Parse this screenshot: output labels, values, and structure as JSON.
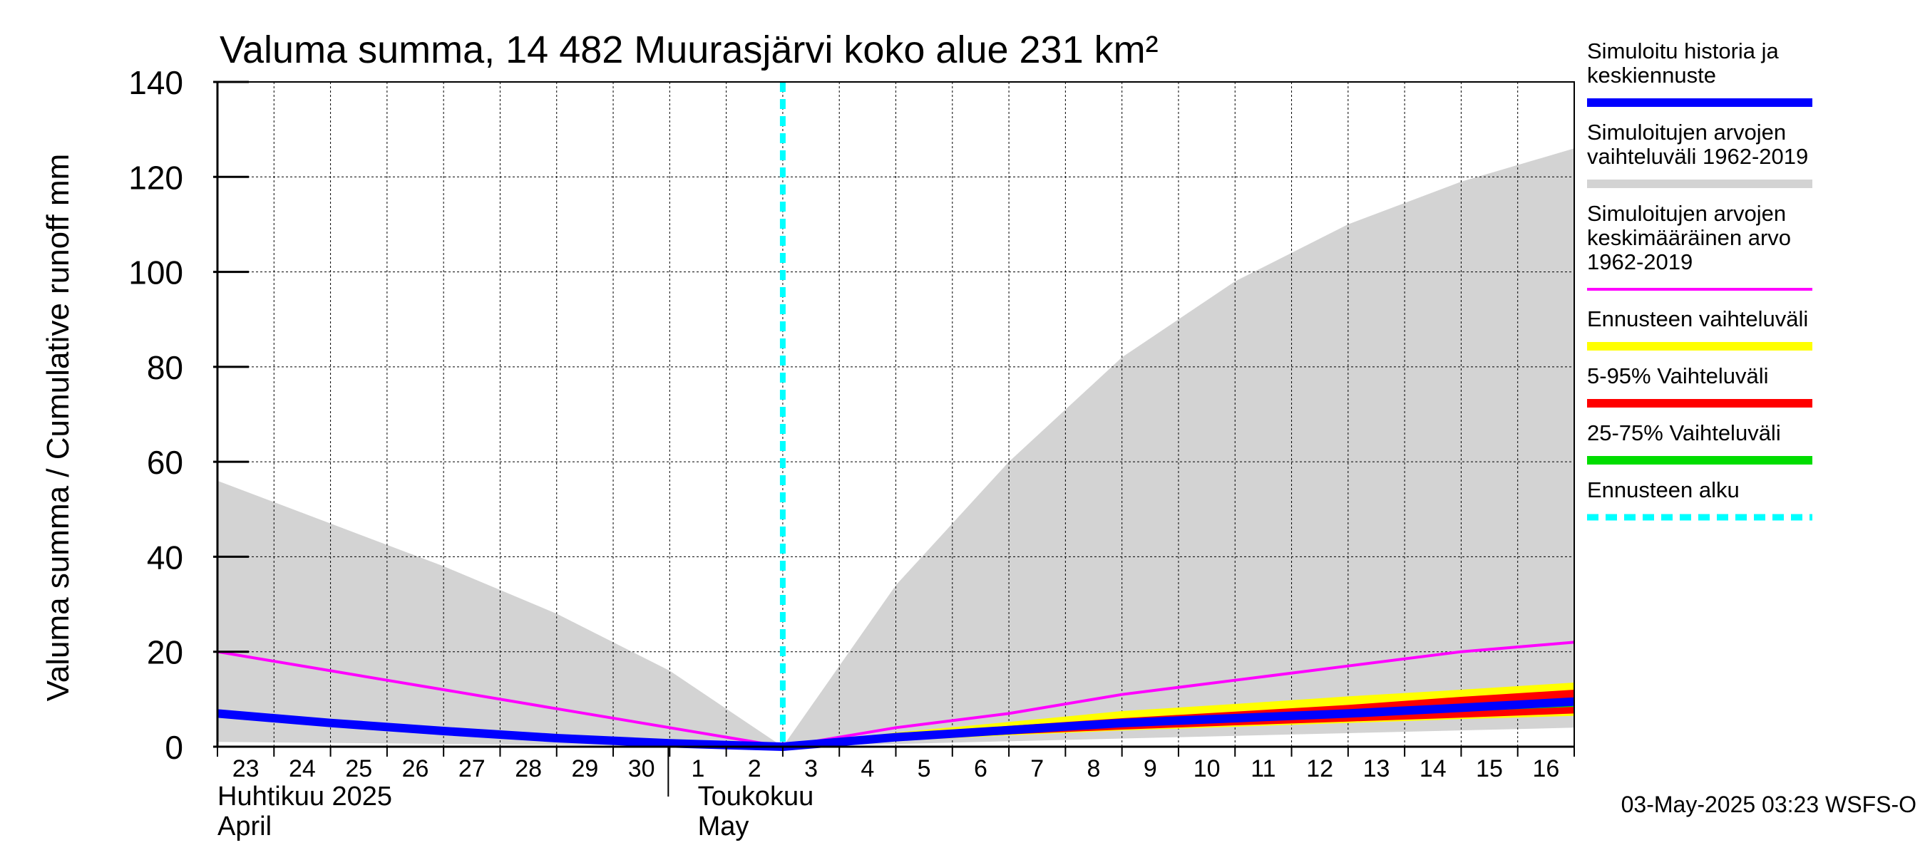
{
  "chart_data": {
    "type": "area",
    "title": "Valuma summa, 14 482 Muurasjärvi koko alue 231 km²",
    "ylabel": "Valuma summa / Cumulative runoff    mm",
    "ylim": [
      0,
      140
    ],
    "yticks": [
      0,
      20,
      40,
      60,
      80,
      100,
      120,
      140
    ],
    "x_start": "2025-04-23",
    "x_end": "2025-05-17",
    "forecast_start": "2025-05-03",
    "grid": true,
    "legend_position": "right",
    "x_tick_labels": [
      "23",
      "24",
      "25",
      "26",
      "27",
      "28",
      "29",
      "30",
      "1",
      "2",
      "3",
      "4",
      "5",
      "6",
      "7",
      "8",
      "9",
      "10",
      "11",
      "12",
      "13",
      "14",
      "15",
      "16"
    ],
    "month_labels": [
      {
        "fi": "Huhtikuu  2025",
        "en": "April"
      },
      {
        "fi": "Toukokuu",
        "en": "May"
      }
    ],
    "footer": "03-May-2025 03:23 WSFS-O",
    "colors": {
      "hist_range": "#d3d3d3",
      "mean": "#ff00ff",
      "simulated": "#0000ff",
      "forecast_range": "#ffff00",
      "p5_95": "#ff0000",
      "p25_75": "#00dd00",
      "forecast_start": "#00ffff"
    },
    "legend": [
      {
        "label": [
          "Simuloitu historia ja",
          "keskiennuste"
        ],
        "color": "#0000ff",
        "style": "solid"
      },
      {
        "label": [
          "Simuloitujen arvojen",
          "vaihteluväli 1962-2019"
        ],
        "color": "#d3d3d3",
        "style": "solid"
      },
      {
        "label": [
          "Simuloitujen arvojen",
          "keskimääräinen arvo",
          "   1962-2019"
        ],
        "color": "#ff00ff",
        "style": "thin"
      },
      {
        "label": [
          "Ennusteen vaihteluväli"
        ],
        "color": "#ffff00",
        "style": "solid"
      },
      {
        "label": [
          "5-95% Vaihteluväli"
        ],
        "color": "#ff0000",
        "style": "solid"
      },
      {
        "label": [
          "25-75% Vaihteluväli"
        ],
        "color": "#00dd00",
        "style": "solid"
      },
      {
        "label": [
          "Ennusteen alku"
        ],
        "color": "#00ffff",
        "style": "dashed"
      }
    ],
    "series": {
      "hist_max": {
        "x": [
          "2025-04-23",
          "2025-04-25",
          "2025-04-27",
          "2025-04-29",
          "2025-05-01",
          "2025-05-03",
          "2025-05-05",
          "2025-05-07",
          "2025-05-09",
          "2025-05-11",
          "2025-05-13",
          "2025-05-15",
          "2025-05-17"
        ],
        "y": [
          56,
          47,
          38,
          28,
          16,
          0,
          34,
          60,
          82,
          98,
          110,
          119,
          126
        ]
      },
      "hist_min": {
        "x": [
          "2025-04-23",
          "2025-05-03",
          "2025-05-17"
        ],
        "y": [
          1,
          0,
          4
        ]
      },
      "mean": {
        "x": [
          "2025-04-23",
          "2025-04-25",
          "2025-04-27",
          "2025-04-29",
          "2025-05-01",
          "2025-05-03",
          "2025-05-05",
          "2025-05-07",
          "2025-05-09",
          "2025-05-11",
          "2025-05-13",
          "2025-05-15",
          "2025-05-17"
        ],
        "y": [
          20,
          16,
          12,
          8,
          4,
          0,
          4,
          7,
          11,
          14,
          17,
          20,
          22
        ]
      },
      "simulated": {
        "x": [
          "2025-04-23",
          "2025-04-25",
          "2025-04-27",
          "2025-04-29",
          "2025-05-01",
          "2025-05-03",
          "2025-05-05",
          "2025-05-07",
          "2025-05-09",
          "2025-05-11",
          "2025-05-13",
          "2025-05-15",
          "2025-05-17"
        ],
        "y": [
          7,
          5,
          3.3,
          1.8,
          0.7,
          0,
          2,
          3.5,
          5,
          6,
          7,
          8.2,
          9.5
        ]
      },
      "forecast_range": {
        "x": [
          "2025-05-03",
          "2025-05-05",
          "2025-05-07",
          "2025-05-09",
          "2025-05-11",
          "2025-05-13",
          "2025-05-15",
          "2025-05-17"
        ],
        "lo": [
          0,
          1.2,
          2.4,
          3.4,
          4.2,
          5,
          5.8,
          6.5
        ],
        "hi": [
          0,
          3,
          5.2,
          7.5,
          9,
          10.6,
          12,
          13.5
        ]
      },
      "p5_95": {
        "x": [
          "2025-05-03",
          "2025-05-05",
          "2025-05-07",
          "2025-05-09",
          "2025-05-11",
          "2025-05-13",
          "2025-05-15",
          "2025-05-17"
        ],
        "lo": [
          0,
          1.4,
          2.6,
          3.6,
          4.5,
          5.3,
          6.1,
          7
        ],
        "hi": [
          0,
          2.6,
          4.4,
          6,
          7.4,
          8.8,
          10.5,
          12
        ]
      },
      "p25_75": {
        "x": [
          "2025-05-03",
          "2025-05-05",
          "2025-05-07",
          "2025-05-09",
          "2025-05-11",
          "2025-05-13",
          "2025-05-15",
          "2025-05-17"
        ],
        "lo": [
          0,
          1.8,
          3.2,
          4.4,
          5.4,
          6.4,
          7.4,
          8.4
        ],
        "hi": [
          0,
          2.2,
          3.8,
          5.4,
          6.6,
          7.6,
          8.8,
          10
        ]
      }
    }
  }
}
